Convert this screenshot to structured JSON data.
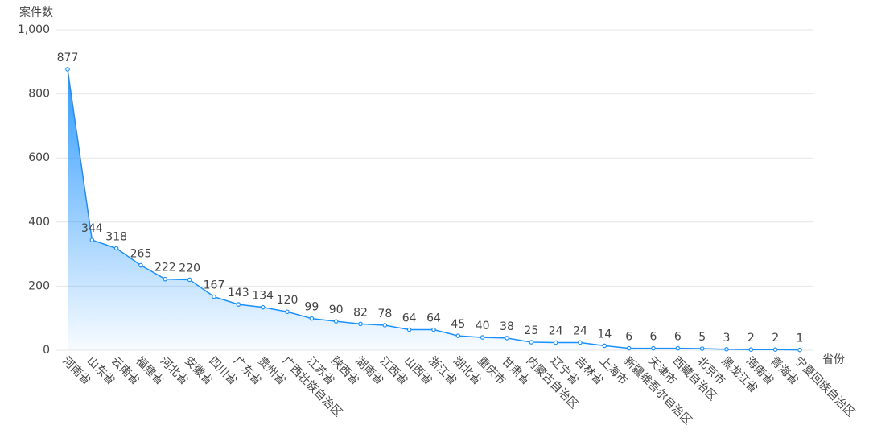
{
  "chart_data": {
    "type": "line",
    "y_label": "案件数",
    "x_label": "省份",
    "categories": [
      "河南省",
      "山东省",
      "云南省",
      "福建省",
      "河北省",
      "安徽省",
      "四川省",
      "广东省",
      "贵州省",
      "广西壮族自治区",
      "江苏省",
      "陕西省",
      "湖南省",
      "江西省",
      "山西省",
      "浙江省",
      "湖北省",
      "重庆市",
      "甘肃省",
      "内蒙古自治区",
      "辽宁省",
      "吉林省",
      "上海市",
      "新疆维吾尔自治区",
      "天津市",
      "西藏自治区",
      "北京市",
      "黑龙江省",
      "海南省",
      "青海省",
      "宁夏回族自治区"
    ],
    "values": [
      877,
      344,
      318,
      265,
      222,
      220,
      167,
      143,
      134,
      120,
      99,
      90,
      82,
      78,
      64,
      64,
      45,
      40,
      38,
      25,
      24,
      24,
      14,
      6,
      6,
      6,
      5,
      3,
      2,
      2,
      1
    ],
    "color": "#1890ff",
    "area": true,
    "ylim": [
      0,
      1000
    ],
    "yticks": [
      0,
      200,
      400,
      600,
      800,
      {
        "value": 1000,
        "label": "1,000"
      }
    ],
    "grid": true
  }
}
